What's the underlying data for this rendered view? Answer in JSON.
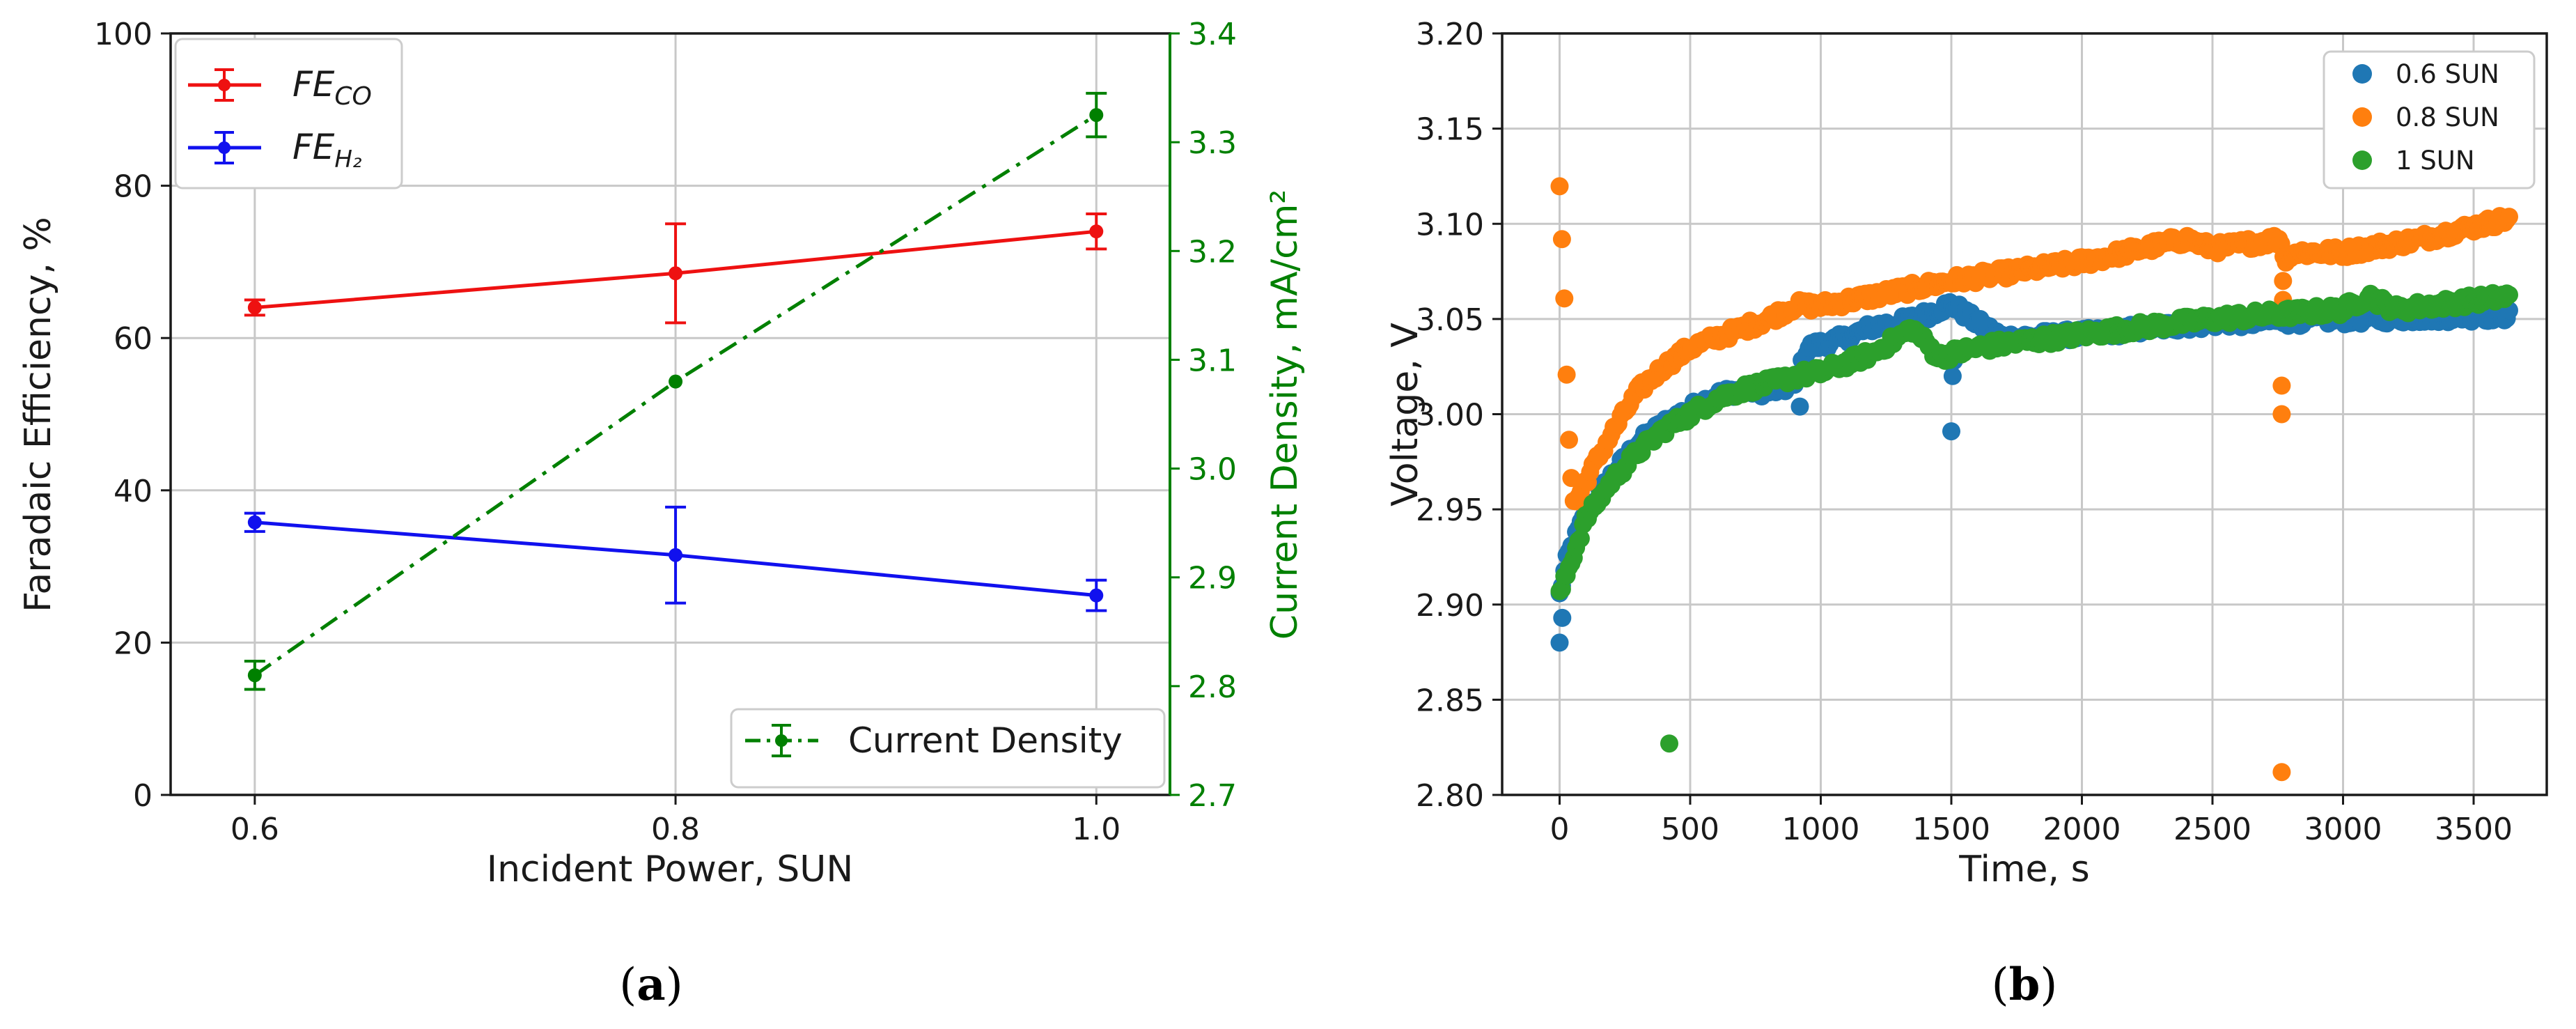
{
  "chart_data": [
    {
      "type": "line",
      "panel_label": "(a)",
      "x": [
        0.6,
        0.8,
        1.0
      ],
      "xticks": [
        "0.6",
        "0.8",
        "1.0"
      ],
      "xlabel": "Incident Power, SUN",
      "xlim": [
        0.56,
        1.035
      ],
      "ylabel": "Faradaic Efficiency, %",
      "ylim": [
        0,
        100
      ],
      "yticks": [
        "0",
        "20",
        "40",
        "60",
        "80",
        "100"
      ],
      "y2label": "Current Density, mA/cm²",
      "y2lim": [
        2.7,
        3.4
      ],
      "y2ticks": [
        "2.7",
        "2.8",
        "2.9",
        "3.0",
        "3.1",
        "3.2",
        "3.3",
        "3.4"
      ],
      "grid": true,
      "series": [
        {
          "name": "FE_CO",
          "legend_main": "FE",
          "legend_sub": "CO",
          "color": "#ee1111",
          "axis": "left",
          "style": "solid",
          "values": [
            64.0,
            68.5,
            74.0
          ],
          "errors": [
            1.0,
            6.5,
            2.3
          ]
        },
        {
          "name": "FE_H2",
          "legend_main": "FE",
          "legend_sub": "H₂",
          "color": "#1111ee",
          "axis": "left",
          "style": "solid",
          "values": [
            35.8,
            31.5,
            26.2
          ],
          "errors": [
            1.2,
            6.3,
            2.0
          ]
        },
        {
          "name": "Current Density",
          "color": "#008000",
          "axis": "right",
          "style": "dashdot",
          "values": [
            2.81,
            3.08,
            3.325
          ],
          "errors": [
            0.013,
            0.0,
            0.02
          ]
        }
      ],
      "legend_upper": "upper-left",
      "legend_lower": "lower-right"
    },
    {
      "type": "scatter",
      "panel_label": "(b)",
      "xlabel": "Time, s",
      "ylabel": "Voltage, V",
      "xlim": [
        -220,
        3780
      ],
      "ylim": [
        2.8,
        3.2
      ],
      "xticks": [
        "0",
        "500",
        "1000",
        "1500",
        "2000",
        "2500",
        "3000",
        "3500"
      ],
      "yticks": [
        "2.80",
        "2.85",
        "2.90",
        "2.95",
        "3.00",
        "3.05",
        "3.10",
        "3.15",
        "3.20"
      ],
      "grid": true,
      "legend": "upper-right",
      "series": [
        {
          "name": "0.6 SUN",
          "color": "#1f77b4",
          "trend": [
            [
              0,
              2.905
            ],
            [
              30,
              2.925
            ],
            [
              100,
              2.948
            ],
            [
              200,
              2.968
            ],
            [
              300,
              2.985
            ],
            [
              400,
              2.995
            ],
            [
              500,
              3.003
            ],
            [
              600,
              3.01
            ],
            [
              700,
              3.013
            ],
            [
              800,
              3.012
            ],
            [
              900,
              3.015
            ],
            [
              950,
              3.035
            ],
            [
              1100,
              3.04
            ],
            [
              1200,
              3.046
            ],
            [
              1300,
              3.048
            ],
            [
              1400,
              3.052
            ],
            [
              1500,
              3.058
            ],
            [
              1600,
              3.048
            ],
            [
              1700,
              3.04
            ],
            [
              2000,
              3.042
            ],
            [
              2500,
              3.048
            ],
            [
              3000,
              3.05
            ],
            [
              3640,
              3.052
            ]
          ],
          "extra_points": [
            [
              0,
              2.88
            ],
            [
              10,
              2.893
            ],
            [
              920,
              3.004
            ],
            [
              1500,
              2.991
            ],
            [
              1505,
              3.02
            ],
            [
              1510,
              3.028
            ]
          ]
        },
        {
          "name": "0.8 SUN",
          "color": "#ff7f0e",
          "trend": [
            [
              0,
              3.118
            ],
            [
              10,
              3.09
            ],
            [
              20,
              3.05
            ],
            [
              30,
              3.01
            ],
            [
              40,
              2.975
            ],
            [
              55,
              2.952
            ],
            [
              100,
              2.965
            ],
            [
              200,
              2.99
            ],
            [
              300,
              3.012
            ],
            [
              400,
              3.025
            ],
            [
              500,
              3.035
            ],
            [
              600,
              3.04
            ],
            [
              700,
              3.045
            ],
            [
              800,
              3.05
            ],
            [
              900,
              3.057
            ],
            [
              1000,
              3.057
            ],
            [
              1200,
              3.062
            ],
            [
              1500,
              3.07
            ],
            [
              2000,
              3.08
            ],
            [
              2400,
              3.092
            ],
            [
              2500,
              3.087
            ],
            [
              2760,
              3.092
            ],
            [
              2780,
              3.08
            ],
            [
              2800,
              3.085
            ],
            [
              3000,
              3.085
            ],
            [
              3300,
              3.092
            ],
            [
              3640,
              3.103
            ]
          ],
          "extra_points": [
            [
              2765,
              3.015
            ],
            [
              2765,
              3.0
            ],
            [
              2765,
              2.812
            ],
            [
              2770,
              3.06
            ],
            [
              2770,
              3.07
            ]
          ]
        },
        {
          "name": "1 SUN",
          "color": "#2ca02c",
          "trend": [
            [
              0,
              2.905
            ],
            [
              50,
              2.925
            ],
            [
              100,
              2.945
            ],
            [
              200,
              2.965
            ],
            [
              300,
              2.98
            ],
            [
              400,
              2.992
            ],
            [
              500,
              3.0
            ],
            [
              600,
              3.008
            ],
            [
              700,
              3.013
            ],
            [
              800,
              3.016
            ],
            [
              900,
              3.02
            ],
            [
              1000,
              3.022
            ],
            [
              1200,
              3.032
            ],
            [
              1350,
              3.045
            ],
            [
              1400,
              3.038
            ],
            [
              1450,
              3.03
            ],
            [
              1600,
              3.035
            ],
            [
              2000,
              3.042
            ],
            [
              2500,
              3.05
            ],
            [
              3000,
              3.055
            ],
            [
              3100,
              3.062
            ],
            [
              3200,
              3.055
            ],
            [
              3640,
              3.062
            ]
          ],
          "extra_points": [
            [
              420,
              2.827
            ]
          ]
        }
      ]
    }
  ]
}
